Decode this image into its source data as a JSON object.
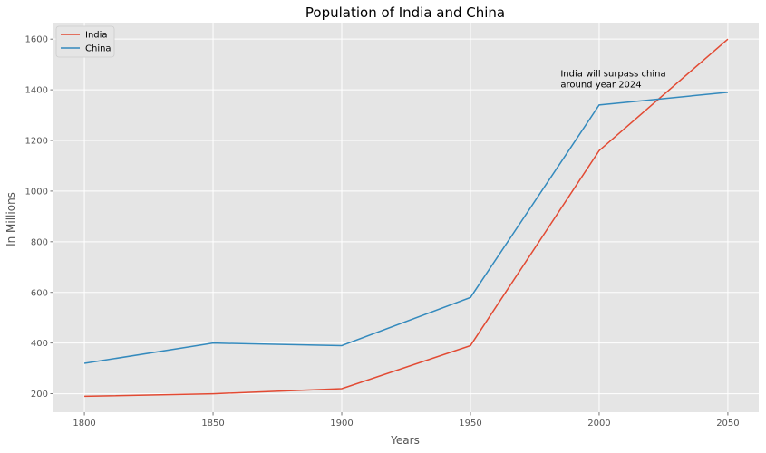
{
  "chart_data": {
    "type": "line",
    "title": "Population of India and China",
    "xlabel": "Years",
    "ylabel": "In Millions",
    "x": [
      1800,
      1850,
      1900,
      1950,
      2000,
      2050
    ],
    "xlim": [
      1788,
      2062
    ],
    "ylim": [
      127,
      1665
    ],
    "xticks": [
      1800,
      1850,
      1900,
      1950,
      2000,
      2050
    ],
    "yticks": [
      200,
      400,
      600,
      800,
      1000,
      1200,
      1400,
      1600
    ],
    "grid": true,
    "legend": "top-left",
    "series": [
      {
        "name": "India",
        "color": "#E24A33",
        "values": [
          190,
          200,
          220,
          390,
          1160,
          1600
        ]
      },
      {
        "name": "China",
        "color": "#348ABD",
        "values": [
          320,
          400,
          390,
          580,
          1340,
          1390
        ]
      }
    ],
    "annotation": {
      "lines": [
        "India will surpass china",
        "around year 2024"
      ],
      "x": 1985,
      "y": 1410
    },
    "colors": {
      "background": "#E5E5E5",
      "grid": "#FFFFFF",
      "legend_bg": "#E5E5E5",
      "legend_border": "#CCCCCC"
    }
  }
}
